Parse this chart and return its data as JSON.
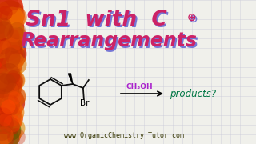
{
  "bg_color": "#f0f0eb",
  "title_line1": "Sn1  with  C",
  "title_line2": "Rearrangements",
  "superscript": "⊕",
  "arrow_label": "CH₃OH",
  "products_label": "products?",
  "website": "www.OrganicChemistry.Tutor.com",
  "title_color_main": "#cc2266",
  "title_color_shadow": "#4444cc",
  "arrow_label_color": "#aa22cc",
  "products_color": "#007744",
  "website_color": "#333300",
  "grid_color": "#c8c8d8",
  "structure_color": "#111111"
}
